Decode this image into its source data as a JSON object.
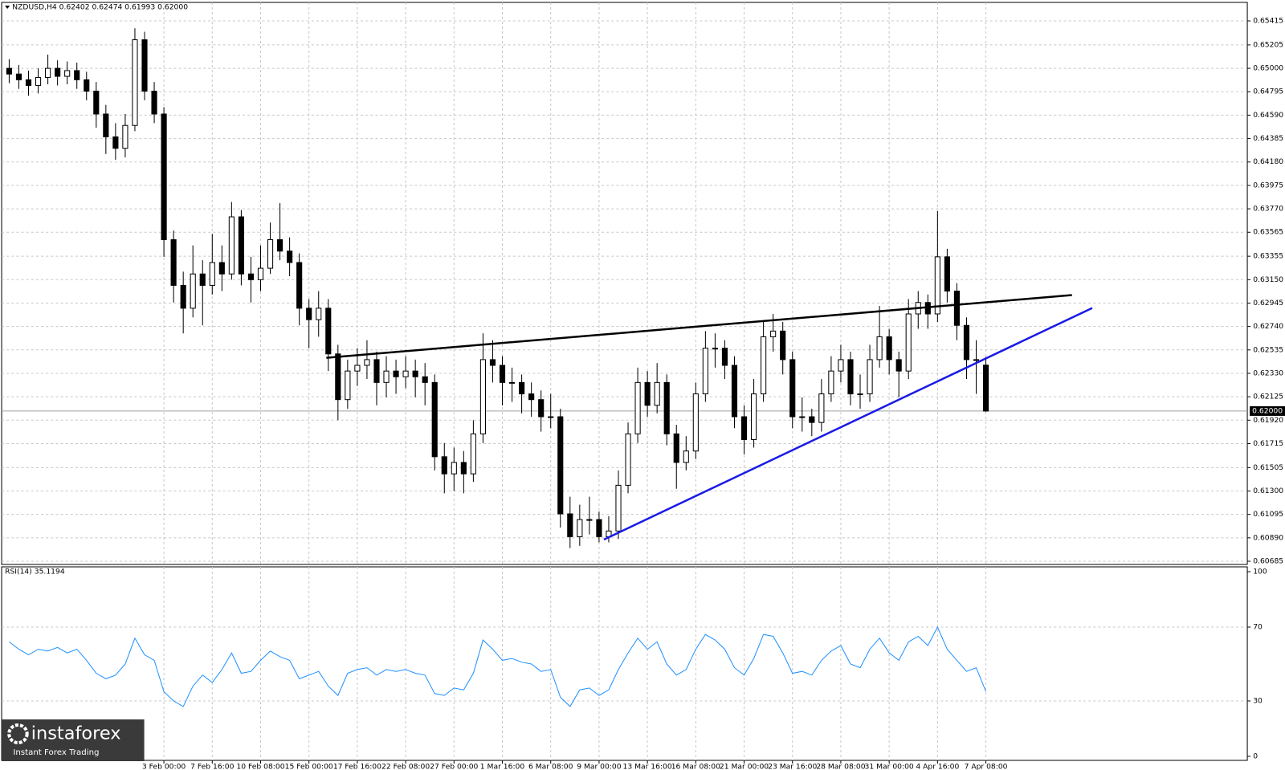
{
  "chart_data": [
    {
      "type": "candlestick",
      "title": "NZDUSD,H4  0.62402 0.62474 0.61993 0.62000",
      "categories": [
        null,
        null,
        null,
        null,
        null,
        null,
        null,
        null,
        null,
        null,
        null,
        null,
        null,
        null,
        null,
        null,
        "3 Feb 00:00",
        null,
        null,
        null,
        null,
        "7 Feb 16:00",
        null,
        null,
        null,
        null,
        "10 Feb 08:00",
        null,
        null,
        null,
        null,
        "15 Feb 00:00",
        null,
        null,
        null,
        null,
        "17 Feb 16:00",
        null,
        null,
        null,
        null,
        "22 Feb 08:00",
        null,
        null,
        null,
        null,
        "27 Feb 00:00",
        null,
        null,
        null,
        null,
        "1 Mar 16:00",
        null,
        null,
        null,
        null,
        "6 Mar 08:00",
        null,
        null,
        null,
        null,
        "9 Mar 00:00",
        null,
        null,
        null,
        null,
        "13 Mar 16:00",
        null,
        null,
        null,
        null,
        "16 Mar 08:00",
        null,
        null,
        null,
        null,
        "21 Mar 00:00",
        null,
        null,
        null,
        null,
        "23 Mar 16:00",
        null,
        null,
        null,
        null,
        "28 Mar 08:00",
        null,
        null,
        null,
        null,
        "31 Mar 00:00",
        null,
        null,
        null,
        null,
        "4 Apr 16:00",
        null,
        null,
        null,
        null,
        "7 Apr 08:00"
      ],
      "ohlc": [
        [
          0.65,
          0.6508,
          0.6487,
          0.6495
        ],
        [
          0.6495,
          0.6503,
          0.6482,
          0.649
        ],
        [
          0.649,
          0.6498,
          0.6476,
          0.6485
        ],
        [
          0.6485,
          0.65,
          0.6478,
          0.6492
        ],
        [
          0.6492,
          0.6512,
          0.6486,
          0.65
        ],
        [
          0.65,
          0.6507,
          0.6485,
          0.6493
        ],
        [
          0.6493,
          0.6506,
          0.6486,
          0.6498
        ],
        [
          0.6498,
          0.6505,
          0.6482,
          0.649
        ],
        [
          0.649,
          0.6497,
          0.6472,
          0.648
        ],
        [
          0.648,
          0.6488,
          0.6448,
          0.646
        ],
        [
          0.646,
          0.6468,
          0.6425,
          0.644
        ],
        [
          0.644,
          0.6452,
          0.642,
          0.643
        ],
        [
          0.643,
          0.646,
          0.6422,
          0.645
        ],
        [
          0.645,
          0.6535,
          0.6445,
          0.6525
        ],
        [
          0.6525,
          0.6532,
          0.6472,
          0.648
        ],
        [
          0.648,
          0.6488,
          0.6452,
          0.646
        ],
        [
          0.646,
          0.6466,
          0.6335,
          0.635
        ],
        [
          0.635,
          0.6358,
          0.6295,
          0.631
        ],
        [
          0.631,
          0.6322,
          0.6268,
          0.629
        ],
        [
          0.629,
          0.6345,
          0.6282,
          0.632
        ],
        [
          0.632,
          0.6332,
          0.6275,
          0.631
        ],
        [
          0.631,
          0.6355,
          0.6302,
          0.633
        ],
        [
          0.633,
          0.6345,
          0.6305,
          0.632
        ],
        [
          0.632,
          0.6383,
          0.6315,
          0.637
        ],
        [
          0.637,
          0.6376,
          0.631,
          0.632
        ],
        [
          0.632,
          0.6335,
          0.6295,
          0.6315
        ],
        [
          0.6315,
          0.6345,
          0.6305,
          0.6325
        ],
        [
          0.6325,
          0.6365,
          0.632,
          0.635
        ],
        [
          0.635,
          0.6382,
          0.6332,
          0.634
        ],
        [
          0.634,
          0.6352,
          0.6318,
          0.633
        ],
        [
          0.633,
          0.6338,
          0.6275,
          0.629
        ],
        [
          0.629,
          0.6298,
          0.6255,
          0.628
        ],
        [
          0.628,
          0.6305,
          0.6265,
          0.629
        ],
        [
          0.629,
          0.6298,
          0.6235,
          0.625
        ],
        [
          0.625,
          0.6258,
          0.6192,
          0.621
        ],
        [
          0.621,
          0.6245,
          0.6202,
          0.6235
        ],
        [
          0.6235,
          0.6255,
          0.6222,
          0.624
        ],
        [
          0.624,
          0.6262,
          0.6228,
          0.6245
        ],
        [
          0.6245,
          0.6252,
          0.6205,
          0.6225
        ],
        [
          0.6225,
          0.6248,
          0.6212,
          0.6235
        ],
        [
          0.6235,
          0.6245,
          0.6215,
          0.623
        ],
        [
          0.623,
          0.6248,
          0.622,
          0.6235
        ],
        [
          0.6235,
          0.6245,
          0.6212,
          0.623
        ],
        [
          0.623,
          0.6242,
          0.6205,
          0.6225
        ],
        [
          0.6225,
          0.6232,
          0.6148,
          0.616
        ],
        [
          0.616,
          0.6172,
          0.6128,
          0.6145
        ],
        [
          0.6145,
          0.6168,
          0.613,
          0.6155
        ],
        [
          0.6155,
          0.6165,
          0.6128,
          0.6145
        ],
        [
          0.6145,
          0.6192,
          0.6138,
          0.618
        ],
        [
          0.618,
          0.6268,
          0.6172,
          0.6245
        ],
        [
          0.6245,
          0.6262,
          0.6225,
          0.624
        ],
        [
          0.624,
          0.6248,
          0.6205,
          0.6225
        ],
        [
          0.6225,
          0.6238,
          0.6208,
          0.6225
        ],
        [
          0.6225,
          0.6232,
          0.6198,
          0.6215
        ],
        [
          0.6215,
          0.6225,
          0.6195,
          0.621
        ],
        [
          0.621,
          0.6218,
          0.6182,
          0.6195
        ],
        [
          0.6195,
          0.6215,
          0.6185,
          0.6195
        ],
        [
          0.6195,
          0.6202,
          0.6098,
          0.611
        ],
        [
          0.611,
          0.6125,
          0.608,
          0.609
        ],
        [
          0.609,
          0.6118,
          0.6082,
          0.6105
        ],
        [
          0.6105,
          0.6125,
          0.6092,
          0.6105
        ],
        [
          0.6105,
          0.6112,
          0.6085,
          0.609
        ],
        [
          0.609,
          0.6108,
          0.6085,
          0.6095
        ],
        [
          0.6095,
          0.6148,
          0.6088,
          0.6135
        ],
        [
          0.6135,
          0.619,
          0.6128,
          0.618
        ],
        [
          0.618,
          0.6238,
          0.6172,
          0.6225
        ],
        [
          0.6225,
          0.6235,
          0.6195,
          0.6205
        ],
        [
          0.6205,
          0.6242,
          0.6198,
          0.6225
        ],
        [
          0.6225,
          0.6232,
          0.617,
          0.618
        ],
        [
          0.618,
          0.6188,
          0.6132,
          0.6155
        ],
        [
          0.6155,
          0.6178,
          0.6148,
          0.6165
        ],
        [
          0.6165,
          0.6225,
          0.6158,
          0.6215
        ],
        [
          0.6215,
          0.627,
          0.6208,
          0.6255
        ],
        [
          0.6255,
          0.6268,
          0.6238,
          0.6255
        ],
        [
          0.6255,
          0.6262,
          0.6228,
          0.624
        ],
        [
          0.624,
          0.6248,
          0.6185,
          0.6195
        ],
        [
          0.6195,
          0.6205,
          0.6162,
          0.6175
        ],
        [
          0.6175,
          0.6228,
          0.6168,
          0.6215
        ],
        [
          0.6215,
          0.6278,
          0.6208,
          0.6265
        ],
        [
          0.6265,
          0.6285,
          0.6252,
          0.627
        ],
        [
          0.627,
          0.6278,
          0.6232,
          0.6245
        ],
        [
          0.6245,
          0.6252,
          0.6185,
          0.6195
        ],
        [
          0.6195,
          0.6212,
          0.6182,
          0.6195
        ],
        [
          0.6195,
          0.6202,
          0.6178,
          0.619
        ],
        [
          0.619,
          0.6228,
          0.6182,
          0.6215
        ],
        [
          0.6215,
          0.6248,
          0.6208,
          0.6235
        ],
        [
          0.6235,
          0.6258,
          0.6225,
          0.6245
        ],
        [
          0.6245,
          0.6252,
          0.6205,
          0.6215
        ],
        [
          0.6215,
          0.6232,
          0.6202,
          0.6215
        ],
        [
          0.6215,
          0.6258,
          0.6208,
          0.6245
        ],
        [
          0.6245,
          0.6292,
          0.6238,
          0.6265
        ],
        [
          0.6265,
          0.6272,
          0.6232,
          0.6245
        ],
        [
          0.6245,
          0.6252,
          0.6212,
          0.6235
        ],
        [
          0.6235,
          0.6298,
          0.6228,
          0.6285
        ],
        [
          0.6285,
          0.6305,
          0.6272,
          0.6295
        ],
        [
          0.6295,
          0.6302,
          0.6272,
          0.6285
        ],
        [
          0.6285,
          0.6375,
          0.6278,
          0.6335
        ],
        [
          0.6335,
          0.6342,
          0.6295,
          0.6305
        ],
        [
          0.6305,
          0.6312,
          0.6262,
          0.6275
        ],
        [
          0.6275,
          0.6282,
          0.6228,
          0.6245
        ],
        [
          0.6245,
          0.6262,
          0.6215,
          0.6245
        ],
        [
          0.62402,
          0.62474,
          0.61993,
          0.62
        ]
      ],
      "ylim": [
        0.60657,
        0.65577
      ],
      "yticks": [
        0.65415,
        0.65205,
        {
          "value": 0.65,
          "label": "0.65000"
        },
        0.64795,
        {
          "value": 0.6459,
          "label": "0.64590"
        },
        0.64385,
        {
          "value": 0.6418,
          "label": "0.64180"
        },
        0.63975,
        {
          "value": 0.6377,
          "label": "0.63770"
        },
        0.63565,
        0.63355,
        {
          "value": 0.6315,
          "label": "0.63150"
        },
        0.62945,
        {
          "value": 0.6274,
          "label": "0.62740"
        },
        0.62535,
        {
          "value": 0.6233,
          "label": "0.62330"
        },
        0.62125,
        {
          "value": 0.6192,
          "label": "0.61920"
        },
        0.61715,
        0.61505,
        {
          "value": 0.613,
          "label": "0.61300"
        },
        0.61095,
        {
          "value": 0.6089,
          "label": "0.60890"
        },
        0.60685
      ],
      "last_price": {
        "value": 0.62,
        "label": "0.62000"
      },
      "trendlines": [
        {
          "color": "#000000",
          "x": [
            32.8,
            109.9
          ],
          "y": [
            0.62466,
            0.63015
          ]
        },
        {
          "color": "#1a1ae6",
          "x": [
            61.5,
            112.0
          ],
          "y": [
            0.60875,
            0.62902
          ]
        }
      ],
      "grid": true,
      "watermark": {
        "title": "instaforex",
        "subtitle": "Instant Forex Trading"
      }
    },
    {
      "type": "line",
      "title": "RSI(14) 35.1194",
      "series": [
        {
          "color": "#1e90ff",
          "values": [
            62,
            58,
            55,
            58,
            57,
            59,
            56,
            58,
            52,
            45,
            42,
            44,
            50,
            64,
            55,
            52,
            35,
            30,
            27,
            38,
            44,
            40,
            47,
            56,
            45,
            46,
            52,
            57,
            54,
            52,
            42,
            44,
            46,
            38,
            33,
            45,
            47,
            48,
            44,
            47,
            46,
            47,
            45,
            44,
            34,
            33,
            37,
            36,
            45,
            63,
            58,
            52,
            53,
            51,
            50,
            46,
            47,
            32,
            27,
            36,
            37,
            33,
            36,
            47,
            56,
            64,
            58,
            62,
            50,
            44,
            47,
            58,
            66,
            63,
            58,
            48,
            44,
            53,
            66,
            65,
            56,
            45,
            46,
            44,
            52,
            57,
            60,
            50,
            48,
            58,
            64,
            56,
            52,
            62,
            65,
            60,
            70,
            58,
            52,
            46,
            48,
            35.1194
          ]
        }
      ],
      "ylim": [
        0,
        100
      ],
      "yticks": [
        100,
        70,
        30,
        0
      ]
    }
  ]
}
